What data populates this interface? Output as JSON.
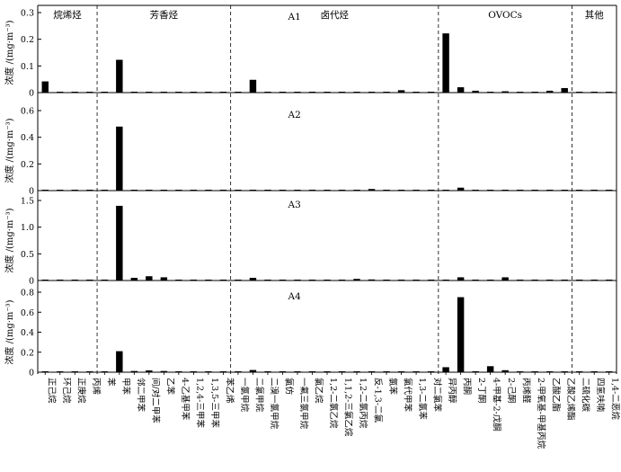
{
  "chart_data": {
    "type": "bar",
    "categories": [
      "正己烷",
      "环己烷",
      "正庚烷",
      "丙烯",
      "苯",
      "甲苯",
      "邻二甲苯",
      "间/对二甲苯",
      "乙苯",
      "4-乙基甲苯",
      "1,2,4-三甲苯",
      "1,3,5-三甲苯",
      "苯乙烯",
      "一氯甲烷",
      "二氯甲烷",
      "二溴一氯甲烷",
      "氯仿",
      "一氟三氯甲烷",
      "氯乙烷",
      "1,2-二氯乙烷",
      "1,1,2-三氯乙烷",
      "1,2-二氯丙烷",
      "反-1,3-二氯",
      "氯苯",
      "氯代甲苯",
      "1,3-二氯苯",
      "对二氯苯",
      "异丙醇",
      "丙酮",
      "2-丁酮",
      "4-甲基-2-戊酮",
      "2-己酮",
      "丙烯醛",
      "2-甲氧基-甲基丙烷",
      "乙酸乙酯",
      "乙酸乙烯酯",
      "二硫化碳",
      "四氢呋喃",
      "1,4-二恶烷"
    ],
    "groups": [
      {
        "label": "烷烯烃",
        "start": 0,
        "end": 3
      },
      {
        "label": "芳香烃",
        "start": 4,
        "end": 12
      },
      {
        "label": "卤代烃",
        "start": 13,
        "end": 26
      },
      {
        "label": "OVOCs",
        "start": 27,
        "end": 35
      },
      {
        "label": "其他",
        "start": 36,
        "end": 38
      }
    ],
    "ylabel": "浓度 /(mg·m⁻³)",
    "panels": [
      {
        "name": "A1",
        "ylim": [
          0,
          0.3
        ],
        "yticks": [
          "0",
          "0.1",
          "0.2",
          "0.3"
        ],
        "values": [
          0.042,
          0.002,
          0.001,
          0.001,
          0.002,
          0.123,
          0.002,
          0.002,
          0.002,
          0.002,
          0.001,
          0.001,
          0.002,
          0.002,
          0.048,
          0.001,
          0.001,
          0.001,
          0.001,
          0.001,
          0.001,
          0.001,
          0.001,
          0.001,
          0.009,
          0.001,
          0.001,
          0.222,
          0.02,
          0.007,
          0.002,
          0.005,
          0.002,
          0.002,
          0.007,
          0.017,
          0.001,
          0.001,
          0.001
        ]
      },
      {
        "name": "A2",
        "ylim": [
          0,
          0.6
        ],
        "yticks": [
          "0",
          "0.2",
          "0.4",
          "0.6"
        ],
        "values": [
          0.003,
          0.002,
          0.002,
          0.003,
          0.002,
          0.48,
          0.003,
          0.003,
          0.003,
          0.002,
          0.002,
          0.002,
          0.002,
          0.002,
          0.002,
          0.001,
          0.001,
          0.001,
          0.001,
          0.001,
          0.001,
          0.001,
          0.012,
          0.001,
          0.001,
          0.001,
          0.001,
          0.004,
          0.022,
          0.005,
          0.002,
          0.002,
          0.002,
          0.002,
          0.005,
          0.002,
          0.001,
          0.001,
          0.001
        ]
      },
      {
        "name": "A3",
        "ylim": [
          0,
          1.5
        ],
        "yticks": [
          "0",
          "0.5",
          "1.0",
          "1.5"
        ],
        "values": [
          0.004,
          0.003,
          0.002,
          0.003,
          0.003,
          1.4,
          0.05,
          0.08,
          0.06,
          0.005,
          0.003,
          0.003,
          0.004,
          0.003,
          0.05,
          0.002,
          0.002,
          0.002,
          0.002,
          0.002,
          0.002,
          0.03,
          0.02,
          0.002,
          0.002,
          0.002,
          0.002,
          0.01,
          0.06,
          0.005,
          0.005,
          0.06,
          0.003,
          0.003,
          0.004,
          0.003,
          0.002,
          0.002,
          0.002
        ]
      },
      {
        "name": "A4",
        "ylim": [
          0,
          0.8
        ],
        "yticks": [
          "0",
          "0.2",
          "0.4",
          "0.6",
          "0.8"
        ],
        "values": [
          0.003,
          0.002,
          0.002,
          0.002,
          0.002,
          0.21,
          0.012,
          0.018,
          0.012,
          0.004,
          0.003,
          0.003,
          0.004,
          0.002,
          0.022,
          0.002,
          0.002,
          0.002,
          0.003,
          0.002,
          0.002,
          0.002,
          0.002,
          0.002,
          0.002,
          0.002,
          0.002,
          0.05,
          0.75,
          0.01,
          0.06,
          0.02,
          0.004,
          0.003,
          0.004,
          0.004,
          0.002,
          0.002,
          0.002
        ]
      }
    ],
    "grid": false,
    "legend": "none"
  }
}
